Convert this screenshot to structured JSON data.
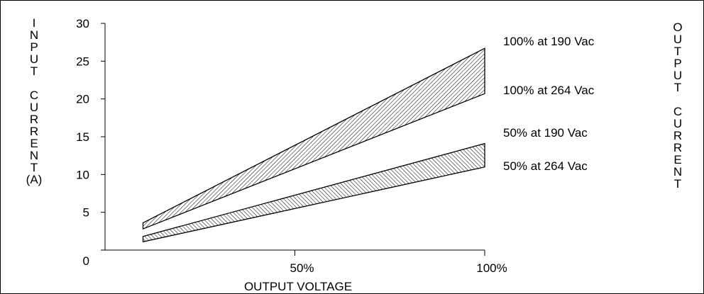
{
  "chart_data": {
    "type": "area",
    "ylabel": "INPUT CURRENT (A)",
    "ylabel_lines": [
      "I",
      "N",
      "P",
      "U",
      "T",
      "",
      "C",
      "U",
      "R",
      "R",
      "E",
      "N",
      "T",
      "(A)"
    ],
    "xlabel": "OUTPUT VOLTAGE",
    "right_label": "OUTPUT CURRENT",
    "right_label_lines": [
      "O",
      "U",
      "T",
      "P",
      "U",
      "T",
      "",
      "C",
      "U",
      "R",
      "R",
      "E",
      "N",
      "T"
    ],
    "ylim": [
      0,
      30
    ],
    "xlim": [
      0,
      100
    ],
    "y_ticks": [
      0,
      5,
      10,
      15,
      20,
      25,
      30
    ],
    "y_tick_labels": [
      "0",
      "5",
      "10",
      "15",
      "20",
      "25",
      "30"
    ],
    "x_ticks": [
      50,
      100
    ],
    "x_tick_labels": [
      "50%",
      "100%"
    ],
    "grid": false,
    "bands": [
      {
        "upper_label": "100% at 190 Vac",
        "lower_label": "100% at 264 Vac",
        "x": [
          10,
          100
        ],
        "upper": [
          3.6,
          26.7
        ],
        "lower": [
          2.8,
          20.7
        ],
        "hatch": "forward"
      },
      {
        "upper_label": "50% at 190 Vac",
        "lower_label": "50% at 264 Vac",
        "x": [
          10,
          100
        ],
        "upper": [
          1.8,
          14.1
        ],
        "lower": [
          1.1,
          11.0
        ],
        "hatch": "backward"
      }
    ]
  }
}
